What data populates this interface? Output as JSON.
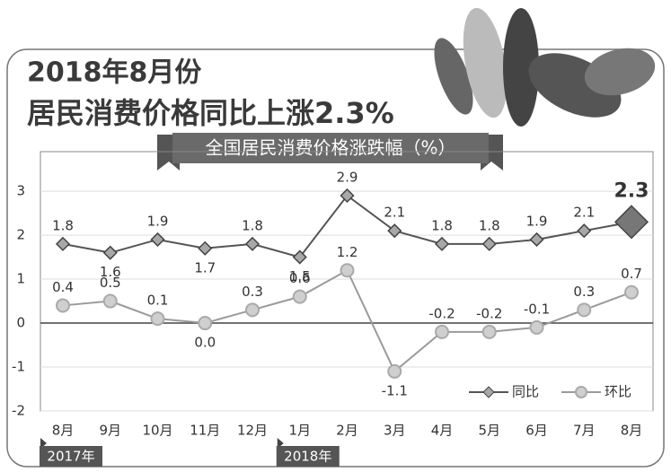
{
  "chart_data": {
    "type": "line",
    "title": "2018年8月份",
    "subtitle": "居民消费价格同比上涨2.3%",
    "chart_label": "全国居民消费价格涨跌幅（%）",
    "categories": [
      "8月",
      "9月",
      "10月",
      "11月",
      "12月",
      "1月",
      "2月",
      "3月",
      "4月",
      "5月",
      "6月",
      "7月",
      "8月"
    ],
    "year_markers": [
      "2017年",
      null,
      null,
      null,
      null,
      "2018年",
      null,
      null,
      null,
      null,
      null,
      null,
      null
    ],
    "series": [
      {
        "name": "同比",
        "color": "#555555",
        "marker_color": "#a8a8a8",
        "values": [
          1.8,
          1.6,
          1.9,
          1.7,
          1.8,
          1.5,
          2.9,
          2.1,
          1.8,
          1.8,
          1.9,
          2.1,
          2.3
        ]
      },
      {
        "name": "环比",
        "color": "#9a9a9a",
        "marker_color": "#cfcfcf",
        "values": [
          0.4,
          0.5,
          0.1,
          0,
          0.3,
          0.6,
          1.2,
          -1.1,
          -0.2,
          -0.2,
          -0.1,
          0.3,
          0.7
        ],
        "value_labels": [
          "0.4",
          "0.5",
          "0.1",
          "0.0",
          "0.3",
          "0.6",
          "1.2",
          "-1.1",
          "-0.2",
          "-0.2",
          "-0.1",
          "0.3",
          "0.7"
        ]
      }
    ],
    "ylim": [
      -2,
      3.9
    ],
    "yticks": [
      -2,
      -1,
      0,
      1,
      2,
      3
    ],
    "grid": true,
    "legend": "lower-right"
  }
}
